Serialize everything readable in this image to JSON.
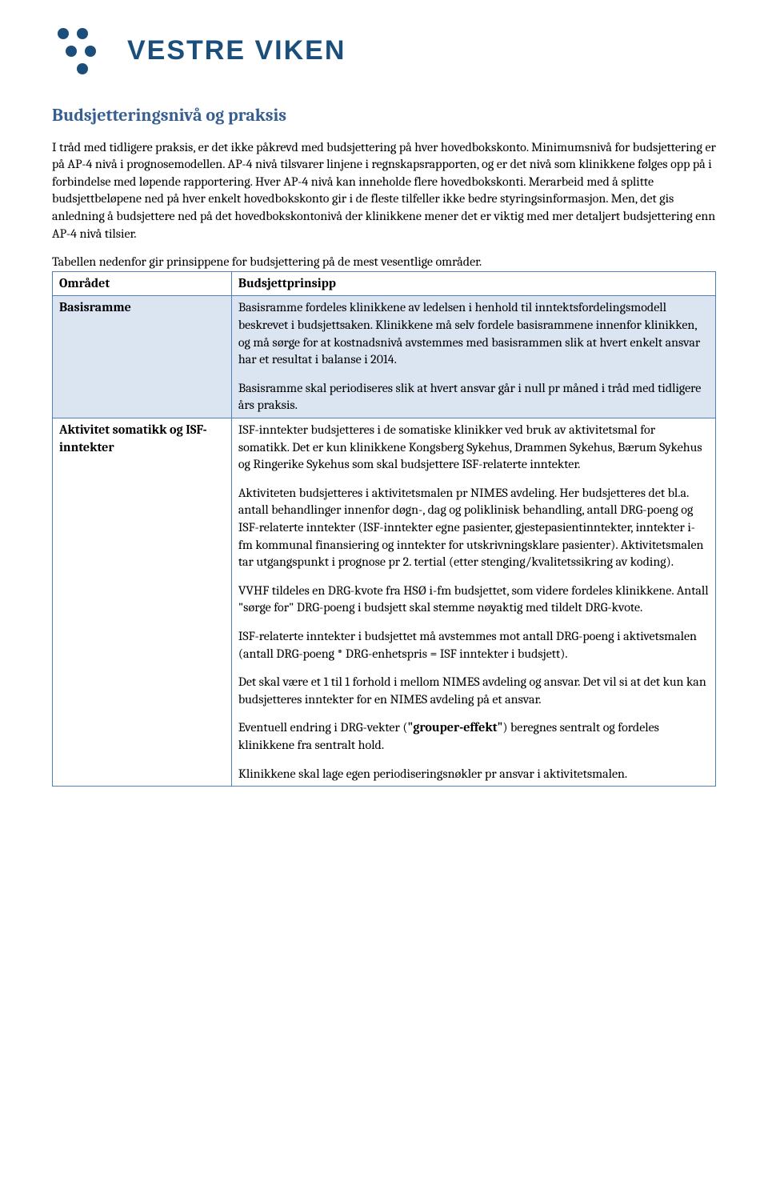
{
  "brand_color": "#1c4e7c",
  "logo_dot_color": "#1c4e7c",
  "logo_text": "VESTRE VIKEN",
  "section_title": "Budsjetteringsnivå og praksis",
  "intro_p1": "I tråd med tidligere praksis, er det ikke påkrevd med budsjettering på hver hovedbokskonto. Minimumsnivå for budsjettering er på AP-4 nivå i prognosemodellen. AP-4 nivå tilsvarer linjene i regnskapsrapporten, og er det nivå som klinikkene følges opp på i forbindelse med løpende rapportering. Hver AP-4 nivå kan inneholde flere hovedbokskonti. Merarbeid med å splitte budsjettbeløpene ned på hver enkelt hovedbokskonto gir i de fleste tilfeller ikke bedre styringsinformasjon. Men, det gis anledning å budsjettere ned på det hovedbokskontonivå der klinikkene mener det er viktig med mer detaljert budsjettering enn AP-4 nivå tilsier.",
  "intro_p2": "Tabellen nedenfor gir prinsippene for budsjettering på de mest vesentlige områder.",
  "table": {
    "columns": [
      "Området",
      "Budsjettprinsipp"
    ],
    "rows": [
      {
        "shaded": true,
        "area": "Basisramme",
        "paras": [
          "Basisramme fordeles klinikkene av ledelsen i henhold til inntektsfordelingsmodell beskrevet i budsjettsaken. Klinikkene må selv fordele basisrammene innenfor klinikken, og må sørge for at kostnadsnivå avstemmes med basisrammen slik at hvert enkelt ansvar har et resultat i balanse i 2014.",
          "Basisramme skal periodiseres slik at hvert ansvar går i null pr måned i tråd med tidligere års praksis."
        ]
      },
      {
        "shaded": false,
        "area": "Aktivitet somatikk og ISF-inntekter",
        "paras": [
          "ISF-inntekter budsjetteres i de somatiske klinikker ved bruk av aktivitetsmal for somatikk. Det er kun klinikkene Kongsberg Sykehus, Drammen Sykehus, Bærum Sykehus og Ringerike Sykehus som skal budsjettere ISF-relaterte inntekter.",
          "Aktiviteten budsjetteres i aktivitetsmalen pr NIMES avdeling. Her budsjetteres det bl.a. antall behandlinger innenfor døgn-, dag og poliklinisk behandling, antall DRG-poeng og ISF-relaterte inntekter (ISF-inntekter egne pasienter, gjestepasientinntekter, inntekter i-fm kommunal finansiering og inntekter for utskrivningsklare pasienter). Aktivitetsmalen tar utgangspunkt i prognose pr 2. tertial (etter stenging/kvalitetssikring av koding).",
          "VVHF tildeles en DRG-kvote fra HSØ i-fm budsjettet, som videre fordeles klinikkene. Antall \"sørge for\" DRG-poeng i budsjett skal stemme nøyaktig med tildelt DRG-kvote.",
          "ISF-relaterte inntekter i budsjettet må avstemmes mot antall DRG-poeng i aktivetsmalen (antall DRG-poeng * DRG-enhetspris = ISF inntekter i budsjett).",
          "Det skal være et 1 til 1 forhold i mellom NIMES avdeling og ansvar. Det vil si at det kun kan budsjetteres inntekter for en NIMES avdeling på et ansvar.",
          "Eventuell endring i DRG-vekter (\"grouper-effekt\") beregnes sentralt og fordeles klinikkene fra sentralt hold.",
          "Klinikkene skal lage egen periodiseringsnøkler pr ansvar i aktivitetsmalen."
        ],
        "bold_phrases": [
          "\"grouper-effekt\""
        ]
      }
    ]
  }
}
